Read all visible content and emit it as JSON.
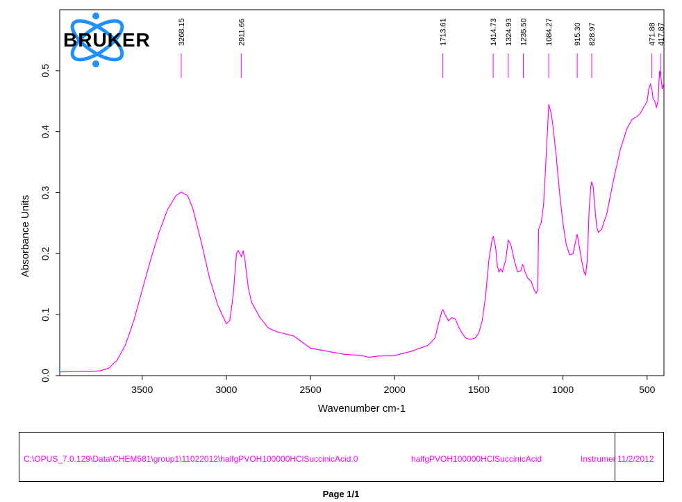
{
  "logo": {
    "text": "BRUKER"
  },
  "chart_data": {
    "type": "line",
    "xlabel": "Wavenumber cm-1",
    "ylabel": "Absorbance Units",
    "xlim": [
      3990,
      400
    ],
    "ylim": [
      0,
      0.6
    ],
    "x_ticks": [
      3500,
      3000,
      2500,
      2000,
      1500,
      1000,
      500
    ],
    "y_ticks": [
      0.0,
      0.1,
      0.2,
      0.3,
      0.4,
      0.5
    ],
    "y_tick_labels": [
      "0.0",
      "0.1",
      "0.2",
      "0.3",
      "0.4",
      "0.5"
    ],
    "line_color": "#ff00ff",
    "peak_labels": [
      "3268.15",
      "2911.66",
      "1713.61",
      "1414.73",
      "1324.93",
      "1235.50",
      "1084.27",
      "915.30",
      "828.97",
      "471.88",
      "417.87"
    ],
    "peak_positions": [
      3268.15,
      2911.66,
      1713.61,
      1414.73,
      1324.93,
      1235.5,
      1084.27,
      915.3,
      828.97,
      471.88,
      417.87
    ],
    "series": [
      {
        "x": [
          3990,
          3800,
          3750,
          3700,
          3650,
          3600,
          3550,
          3500,
          3450,
          3400,
          3350,
          3300,
          3268,
          3230,
          3200,
          3150,
          3100,
          3050,
          3000,
          2980,
          2960,
          2940,
          2930,
          2920,
          2911,
          2900,
          2890,
          2870,
          2850,
          2800,
          2750,
          2700,
          2600,
          2500,
          2400,
          2300,
          2200,
          2150,
          2100,
          2000,
          1900,
          1800,
          1760,
          1740,
          1720,
          1713,
          1700,
          1680,
          1660,
          1640,
          1620,
          1600,
          1580,
          1560,
          1540,
          1520,
          1500,
          1480,
          1460,
          1440,
          1420,
          1414,
          1400,
          1390,
          1380,
          1370,
          1360,
          1340,
          1325,
          1310,
          1290,
          1270,
          1250,
          1240,
          1235,
          1225,
          1210,
          1190,
          1170,
          1160,
          1150,
          1145,
          1130,
          1115,
          1100,
          1084,
          1070,
          1060,
          1040,
          1020,
          1000,
          980,
          960,
          940,
          925,
          915,
          905,
          890,
          875,
          865,
          855,
          845,
          835,
          829,
          820,
          810,
          800,
          790,
          770,
          740,
          700,
          660,
          620,
          590,
          560,
          540,
          520,
          500,
          490,
          480,
          472,
          465,
          455,
          445,
          435,
          430,
          425,
          418,
          410,
          400
        ],
        "y": [
          0.006,
          0.007,
          0.008,
          0.012,
          0.025,
          0.05,
          0.09,
          0.14,
          0.19,
          0.235,
          0.272,
          0.295,
          0.301,
          0.295,
          0.275,
          0.22,
          0.16,
          0.115,
          0.085,
          0.09,
          0.13,
          0.2,
          0.205,
          0.2,
          0.195,
          0.205,
          0.19,
          0.145,
          0.12,
          0.095,
          0.078,
          0.072,
          0.065,
          0.045,
          0.04,
          0.035,
          0.033,
          0.03,
          0.032,
          0.033,
          0.04,
          0.05,
          0.062,
          0.085,
          0.105,
          0.108,
          0.1,
          0.09,
          0.095,
          0.093,
          0.08,
          0.07,
          0.062,
          0.06,
          0.06,
          0.062,
          0.07,
          0.09,
          0.13,
          0.19,
          0.225,
          0.228,
          0.21,
          0.18,
          0.17,
          0.175,
          0.17,
          0.19,
          0.222,
          0.215,
          0.19,
          0.17,
          0.172,
          0.182,
          0.18,
          0.17,
          0.16,
          0.155,
          0.14,
          0.135,
          0.14,
          0.24,
          0.25,
          0.28,
          0.36,
          0.445,
          0.43,
          0.41,
          0.36,
          0.3,
          0.25,
          0.215,
          0.198,
          0.2,
          0.22,
          0.232,
          0.215,
          0.19,
          0.17,
          0.165,
          0.19,
          0.27,
          0.31,
          0.318,
          0.31,
          0.275,
          0.245,
          0.235,
          0.24,
          0.265,
          0.32,
          0.37,
          0.405,
          0.42,
          0.425,
          0.43,
          0.44,
          0.45,
          0.47,
          0.478,
          0.47,
          0.455,
          0.45,
          0.44,
          0.45,
          0.48,
          0.5,
          0.49,
          0.47,
          0.48
        ]
      }
    ]
  },
  "footer": {
    "path": "C:\\OPUS_7.0.129\\Data\\CHEM581\\group1\\11022012\\halfgPVOH100000HClSuccinicAcid.0",
    "sample_name": "halfgPVOH100000HClSuccinicAcid",
    "instrument": "Instrumer",
    "date": "11/2/2012"
  },
  "page_label": "Page 1/1",
  "colors": {
    "accent": "#ff00ff",
    "logo_blue": "#1e90ff"
  }
}
